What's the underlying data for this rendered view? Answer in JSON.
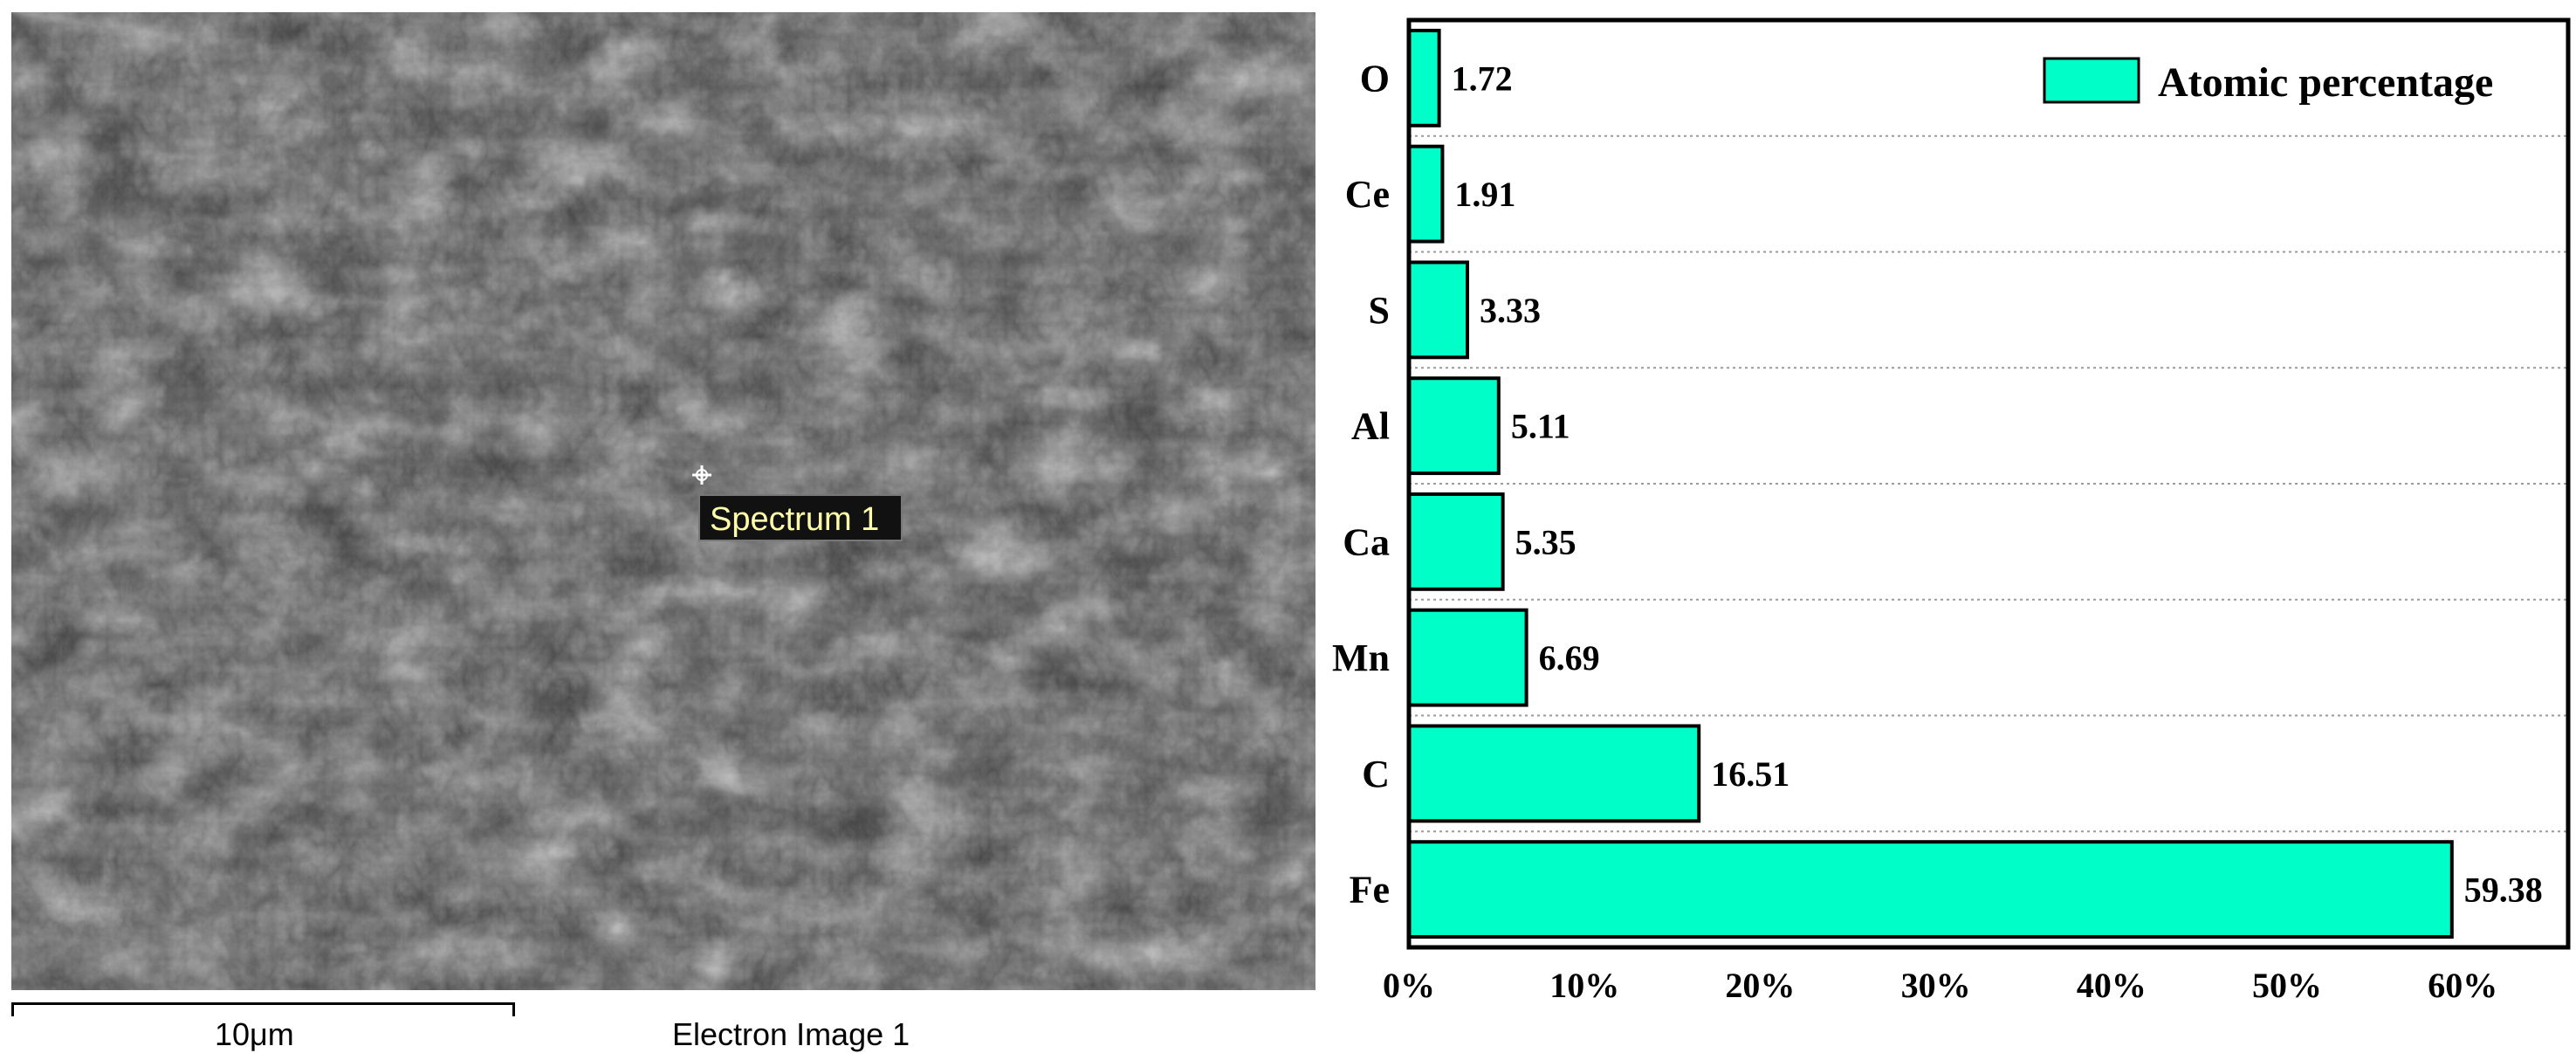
{
  "sem_image": {
    "spectrum_label": "Spectrum 1",
    "scale_bar_label": "10μm",
    "image_caption": "Electron Image 1"
  },
  "colors": {
    "bar_fill": "#00ffc8",
    "bar_stroke": "#000000",
    "spectrum_label_text": "#ffffaa",
    "sem_background": "#3c3c3c"
  },
  "chart_data": {
    "type": "bar",
    "orientation": "horizontal",
    "categories": [
      "O",
      "Ce",
      "S",
      "Al",
      "Ca",
      "Mn",
      "C",
      "Fe"
    ],
    "values": [
      1.72,
      1.91,
      3.33,
      5.11,
      5.35,
      6.69,
      16.51,
      59.38
    ],
    "series": [
      {
        "name": "Atomic percentage",
        "values": [
          1.72,
          1.91,
          3.33,
          5.11,
          5.35,
          6.69,
          16.51,
          59.38
        ]
      }
    ],
    "value_labels": [
      "1.72",
      "1.91",
      "3.33",
      "5.11",
      "5.35",
      "6.69",
      "16.51",
      "59.38"
    ],
    "x_ticks": [
      0,
      10,
      20,
      30,
      40,
      50,
      60
    ],
    "x_tick_labels": [
      "0%",
      "10%",
      "20%",
      "30%",
      "40%",
      "50%",
      "60%"
    ],
    "xlim": [
      0,
      66
    ],
    "grid": "horizontal dotted lines between categories",
    "legend": {
      "label": "Atomic percentage",
      "position": "top-right"
    },
    "title": "",
    "xlabel": "",
    "ylabel": ""
  }
}
